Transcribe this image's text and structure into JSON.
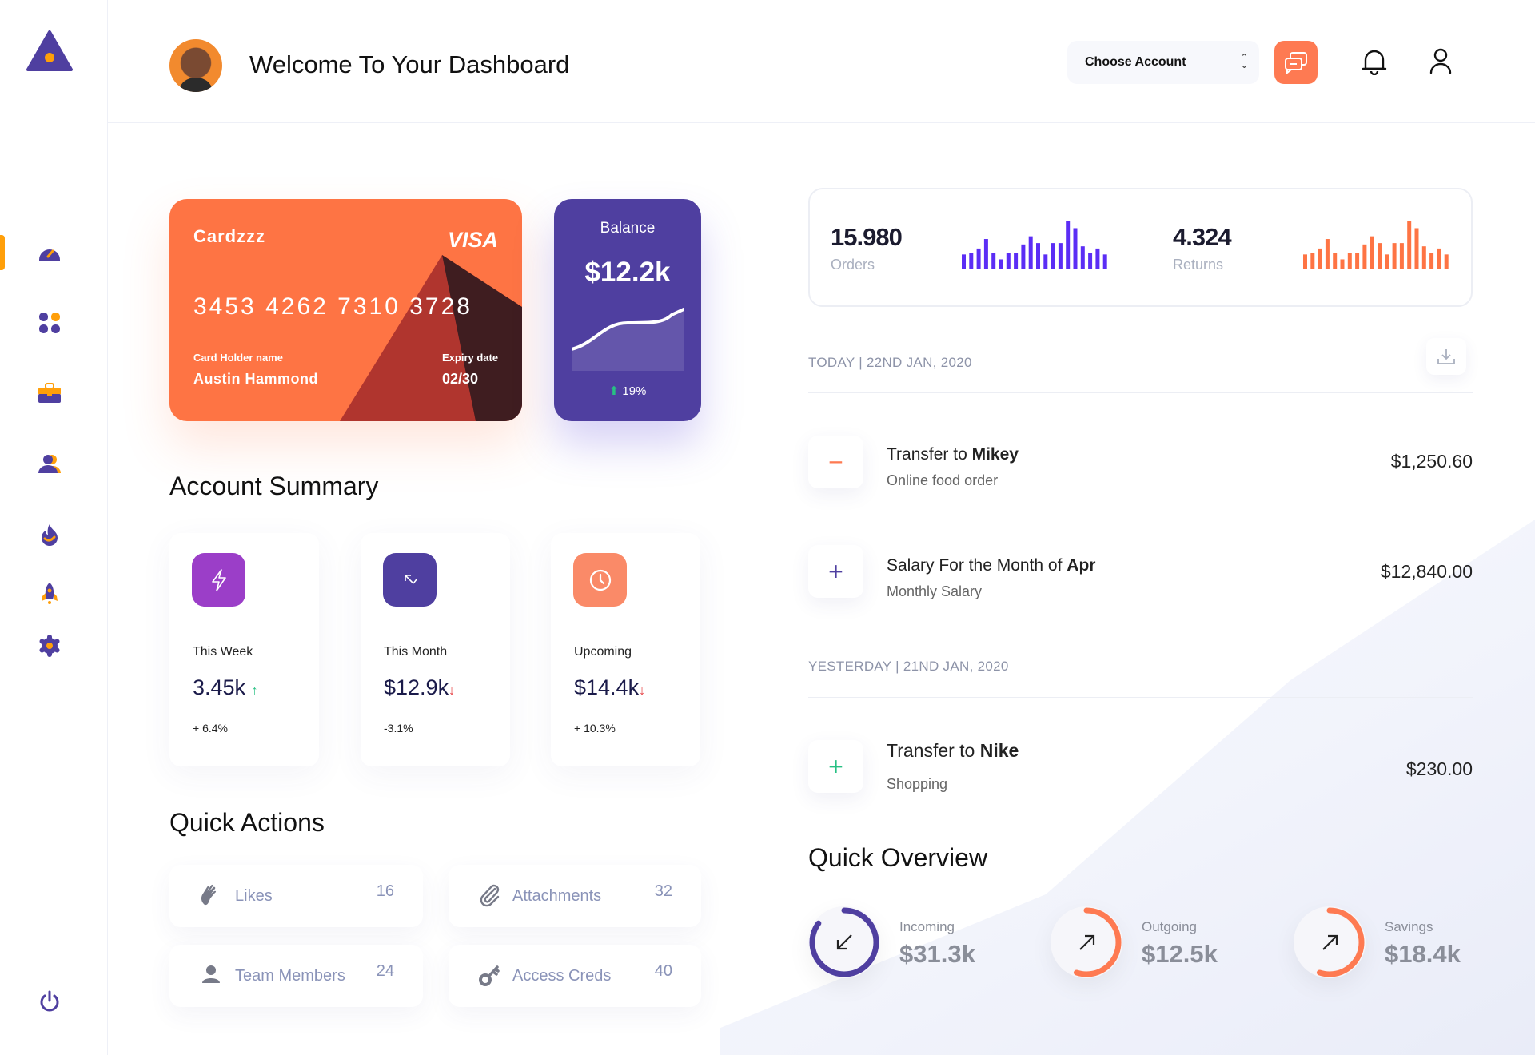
{
  "header": {
    "title": "Welcome To Your Dashboard",
    "account_select": "Choose Account"
  },
  "sidebar": {
    "items": [
      {
        "name": "dashboard",
        "icon": "speedometer-icon",
        "active": true
      },
      {
        "name": "apps",
        "icon": "grid-icon"
      },
      {
        "name": "portfolio",
        "icon": "briefcase-icon"
      },
      {
        "name": "users",
        "icon": "users-icon"
      },
      {
        "name": "trending",
        "icon": "fire-icon"
      },
      {
        "name": "launch",
        "icon": "rocket-icon"
      },
      {
        "name": "settings",
        "icon": "gear-icon"
      }
    ],
    "logout_icon": "power-icon"
  },
  "colors": {
    "primary": "#4f3fa0",
    "accent": "#fe7444",
    "orange": "#ff9f0a",
    "purple_bar": "#5b2df5",
    "up": "#27c083",
    "down": "#e5383b"
  },
  "card": {
    "brand": "Cardzzz",
    "network": "VISA",
    "number": "3453 4262 7310 3728",
    "holder_label": "Card Holder name",
    "holder": "Austin Hammond",
    "expiry_label": "Expiry date",
    "expiry": "02/30"
  },
  "balance": {
    "label": "Balance",
    "value": "$12.2k",
    "change": "19%",
    "trend": "up"
  },
  "account_summary": {
    "title": "Account Summary",
    "cards": [
      {
        "label": "This Week",
        "value": "3.45k",
        "change": "+ 6.4%",
        "trend": "up",
        "color": "#9b3ec8",
        "icon": "lightning-icon"
      },
      {
        "label": "This Month",
        "value": "$12.9k",
        "change": "-3.1%",
        "trend": "down",
        "color": "#4f3fa0",
        "icon": "arrow-up-left-icon"
      },
      {
        "label": "Upcoming",
        "value": "$14.4k",
        "change": "+ 10.3%",
        "trend": "down",
        "color": "#fa8a68",
        "icon": "clock-icon"
      }
    ]
  },
  "quick_actions": {
    "title": "Quick Actions",
    "items": [
      {
        "label": "Likes",
        "count": "16",
        "icon": "clap-icon"
      },
      {
        "label": "Attachments",
        "count": "32",
        "icon": "paperclip-icon"
      },
      {
        "label": "Team Members",
        "count": "24",
        "icon": "person-icon"
      },
      {
        "label": "Access Creds",
        "count": "40",
        "icon": "key-icon"
      }
    ]
  },
  "stats": {
    "orders": {
      "value": "15.980",
      "label": "Orders",
      "bars": [
        55,
        60,
        77,
        112,
        60,
        37,
        60,
        60,
        92,
        122,
        97,
        55,
        97,
        97,
        177,
        152,
        85,
        60,
        77,
        55
      ]
    },
    "returns": {
      "value": "4.324",
      "label": "Returns",
      "bars": [
        55,
        60,
        77,
        112,
        60,
        37,
        60,
        60,
        92,
        122,
        97,
        55,
        97,
        97,
        177,
        152,
        85,
        60,
        77,
        55
      ]
    }
  },
  "transactions": {
    "today_label": "TODAY | 22ND JAN, 2020",
    "yesterday_label": "YESTERDAY | 21ND JAN, 2020",
    "items": [
      {
        "title": "Transfer to ",
        "target": "Mikey",
        "subtitle": "Online food order",
        "amount": "$1,250.60",
        "sign": "−"
      },
      {
        "title": "Salary For the Month of ",
        "target": "Apr",
        "subtitle": "Monthly Salary",
        "amount": "$12,840.00",
        "sign": "+"
      },
      {
        "title": "Transfer to ",
        "target": "Nike",
        "subtitle": "Shopping",
        "amount": "$230.00",
        "sign": "+"
      }
    ]
  },
  "quick_overview": {
    "title": "Quick Overview",
    "items": [
      {
        "label": "Incoming",
        "value": "$31.3k",
        "progress": 0.85,
        "color": "#4f3fa0",
        "icon": "arrow-down-left-icon"
      },
      {
        "label": "Outgoing",
        "value": "$12.5k",
        "progress": 0.55,
        "color": "#fe7a52",
        "icon": "arrow-up-right-icon"
      },
      {
        "label": "Savings",
        "value": "$18.4k",
        "progress": 0.55,
        "color": "#fe7a52",
        "icon": "arrow-up-right-icon"
      }
    ]
  }
}
